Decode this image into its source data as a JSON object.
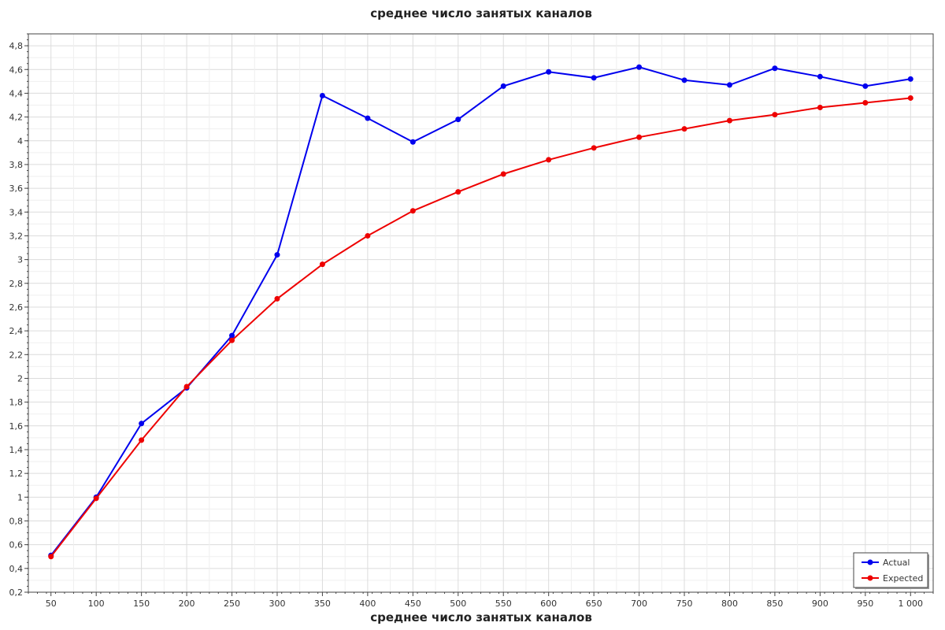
{
  "chart_data": {
    "type": "line",
    "title": "среднее число занятых каналов",
    "xlabel": "среднее число занятых каналов",
    "ylabel": "",
    "xlim": [
      25,
      1025
    ],
    "ylim": [
      0.2,
      4.9
    ],
    "x": [
      50,
      100,
      150,
      200,
      250,
      300,
      350,
      400,
      450,
      500,
      550,
      600,
      650,
      700,
      750,
      800,
      850,
      900,
      950,
      1000
    ],
    "x_tick_labels": [
      "50",
      "100",
      "150",
      "200",
      "250",
      "300",
      "350",
      "400",
      "450",
      "500",
      "550",
      "600",
      "650",
      "700",
      "750",
      "800",
      "850",
      "900",
      "950",
      "1 000"
    ],
    "y_ticks": [
      0.2,
      0.4,
      0.6,
      0.8,
      1,
      1.2,
      1.4,
      1.6,
      1.8,
      2,
      2.2,
      2.4,
      2.6,
      2.8,
      3,
      3.2,
      3.4,
      3.6,
      3.8,
      4,
      4.2,
      4.4,
      4.6,
      4.8
    ],
    "y_tick_labels": [
      "0,2",
      "0,4",
      "0,6",
      "0,8",
      "1",
      "1,2",
      "1,4",
      "1,6",
      "1,8",
      "2",
      "2,2",
      "2,4",
      "2,6",
      "2,8",
      "3",
      "3,2",
      "3,4",
      "3,6",
      "3,8",
      "4",
      "4,2",
      "4,4",
      "4,6",
      "4,8"
    ],
    "grid": true,
    "legend_position": "bottom-right",
    "series": [
      {
        "name": "Actual",
        "color": "#0000ee",
        "values": [
          0.51,
          1.0,
          1.62,
          1.92,
          2.36,
          3.04,
          4.38,
          4.19,
          3.99,
          4.18,
          4.46,
          4.58,
          4.53,
          4.62,
          4.51,
          4.47,
          4.61,
          4.54,
          4.46,
          4.52
        ]
      },
      {
        "name": "Expected",
        "color": "#ee0000",
        "values": [
          0.5,
          0.99,
          1.48,
          1.93,
          2.32,
          2.67,
          2.96,
          3.2,
          3.41,
          3.57,
          3.72,
          3.84,
          3.94,
          4.03,
          4.1,
          4.17,
          4.22,
          4.28,
          4.32,
          4.36
        ]
      }
    ]
  }
}
